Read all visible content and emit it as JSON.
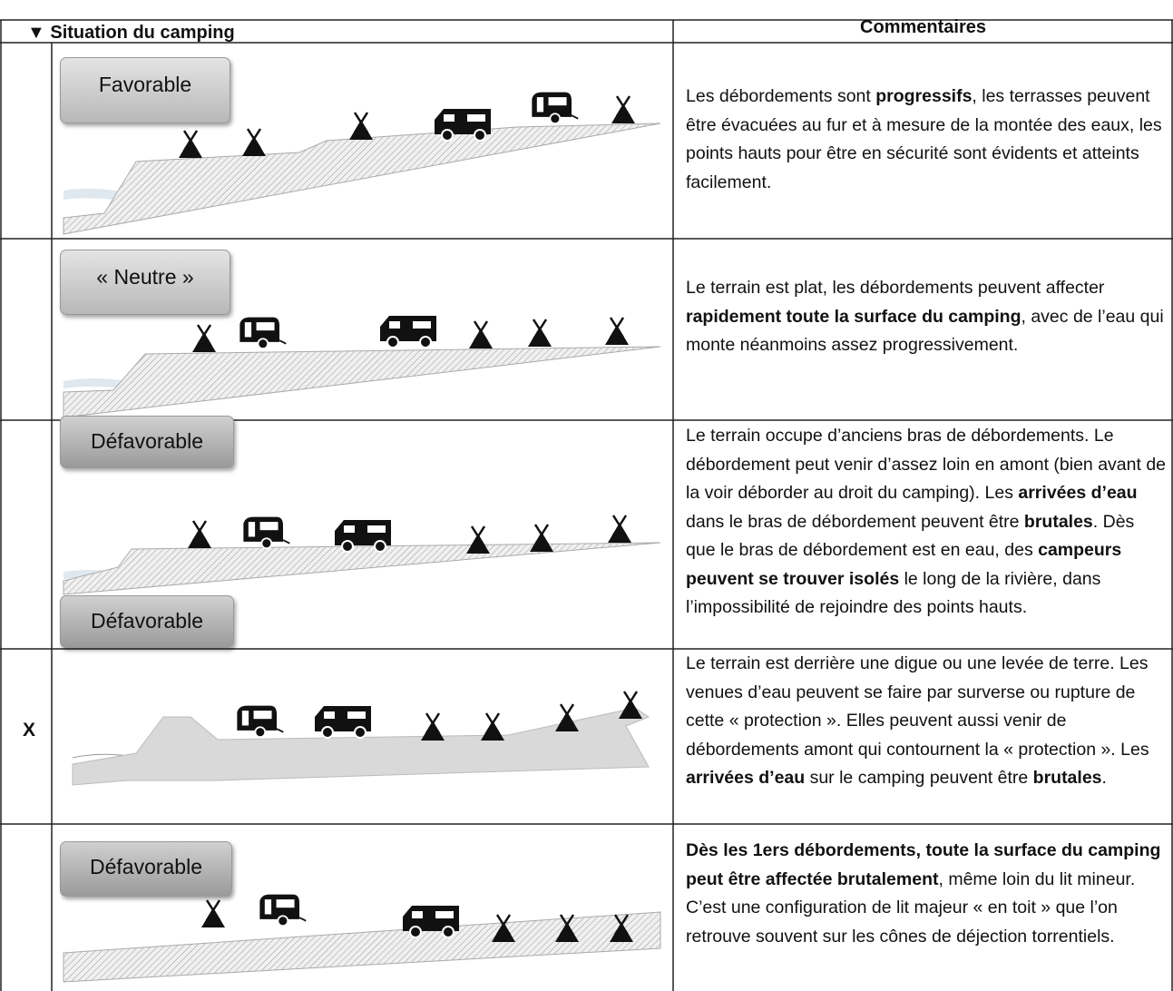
{
  "header": {
    "situation": "▼ Situation du camping",
    "comments": "Commentaires"
  },
  "rows": [
    {
      "label": "Favorable",
      "comment": [
        {
          "text": "Les débordements sont "
        },
        {
          "text": "progressifs",
          "bold": true
        },
        {
          "text": ", les terrasses peuvent être évacuées au fur et à mesure de la montée des eaux, les points hauts pour être en sécurité sont évidents et atteints facilement."
        }
      ]
    },
    {
      "label": "« Neutre »",
      "comment": [
        {
          "text": "Le terrain est plat, les débordements peuvent affecter "
        },
        {
          "text": "rapidement toute la surface du camping",
          "bold": true
        },
        {
          "text": ", avec de l’eau qui monte néanmoins assez progressivement."
        }
      ]
    },
    {
      "label": "Défavorable",
      "comment": [
        {
          "text": "Le terrain occupe d’anciens bras de débordements. Le débordement peut venir d’assez loin en amont (bien avant de la voir déborder au droit du camping). Les "
        },
        {
          "text": "arrivées d’eau",
          "bold": true
        },
        {
          "text": " dans le bras de débordement peuvent être "
        },
        {
          "text": "brutales",
          "bold": true
        },
        {
          "text": ". Dès que le bras de débordement est en eau, des "
        },
        {
          "text": "campeurs peuvent se trouver isolés",
          "bold": true
        },
        {
          "text": " le long de la rivière, dans l’impossibilité de rejoindre des points hauts."
        }
      ]
    },
    {
      "label": "Défavorable",
      "mark": "X",
      "comment": [
        {
          "text": "Le terrain est derrière une digue ou une levée de terre. Les venues d’eau peuvent se faire par surverse ou rupture de cette « protection ». Elles peuvent aussi venir de débordements amont qui contournent la « protection ». Les "
        },
        {
          "text": "arrivées d’eau",
          "bold": true
        },
        {
          "text": " sur le camping peuvent être "
        },
        {
          "text": "brutales",
          "bold": true
        },
        {
          "text": "."
        }
      ]
    },
    {
      "label": "Défavorable",
      "comment": [
        {
          "text": "Dès les 1ers débordements, toute la surface du camping peut être affectée brutalement",
          "bold": true
        },
        {
          "text": ", même loin du lit mineur. C’est une configuration de lit majeur « en toit » que l’on retrouve souvent sur les cônes de déjection torrentiels."
        }
      ]
    }
  ]
}
